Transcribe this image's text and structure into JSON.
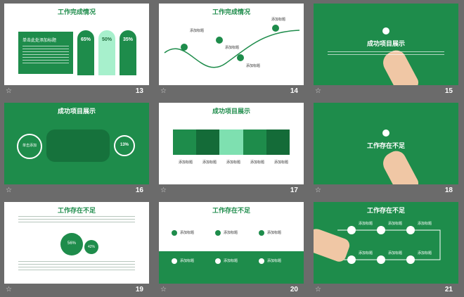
{
  "slides": [
    {
      "num": "13",
      "title": "工作完成情况",
      "box_title": "单击此处添加标题",
      "pcts": [
        "65%",
        "50%",
        "35%"
      ]
    },
    {
      "num": "14",
      "title": "工作完成情况",
      "labels": [
        "添加标题",
        "添加标题",
        "添加标题",
        "添加标题"
      ]
    },
    {
      "num": "15",
      "title": "成功项目展示"
    },
    {
      "num": "16",
      "title": "成功项目展示",
      "bubble": "单击添加",
      "percent": "13%"
    },
    {
      "num": "17",
      "title": "成功项目展示",
      "cols": [
        "添加标题",
        "添加标题",
        "添加标题",
        "添加标题",
        "添加标题"
      ],
      "items": [
        "添加标题",
        "添加标题",
        "添加标题",
        "添加标题",
        "添加标题"
      ]
    },
    {
      "num": "18",
      "title": "工作存在不足"
    },
    {
      "num": "19",
      "title": "工作存在不足",
      "bubbles": [
        "56%",
        "42%"
      ]
    },
    {
      "num": "20",
      "title": "工作存在不足",
      "items": [
        "添加标题",
        "添加标题",
        "添加标题",
        "添加标题",
        "添加标题",
        "添加标题"
      ],
      "numbers": [
        "1",
        "2",
        "3",
        "4",
        "5",
        "6"
      ]
    },
    {
      "num": "21",
      "title": "工作存在不足",
      "labels": [
        "添加标题",
        "添加标题",
        "添加标题",
        "添加标题",
        "添加标题",
        "添加标题"
      ]
    }
  ],
  "colors": {
    "green": "#1e8c4b",
    "light": "#7ee0b0",
    "bg": "#6b6b6b"
  },
  "icons": {
    "star": "☆"
  }
}
